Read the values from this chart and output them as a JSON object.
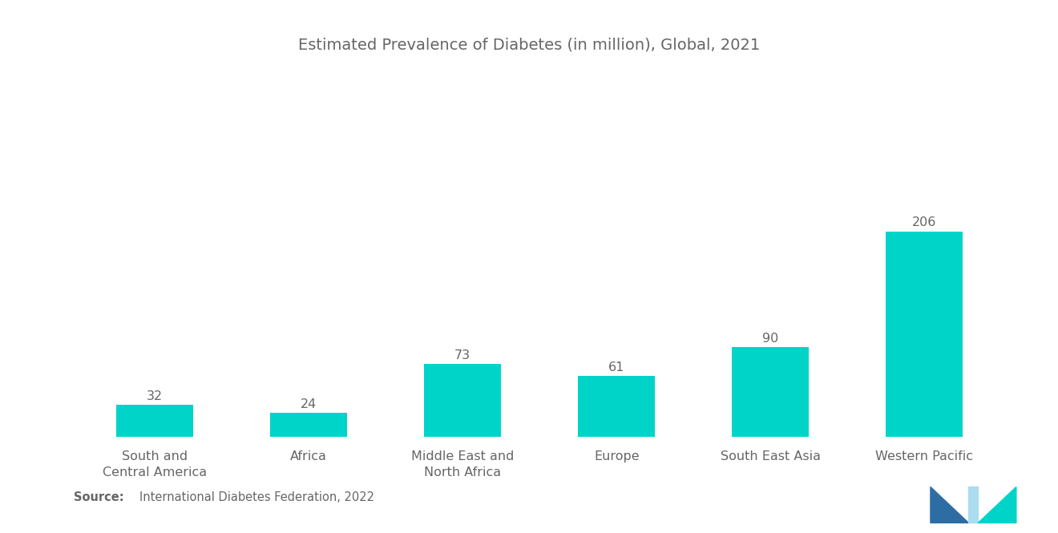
{
  "title": "Estimated Prevalence of Diabetes (in million), Global, 2021",
  "categories": [
    "South and\nCentral America",
    "Africa",
    "Middle East and\nNorth Africa",
    "Europe",
    "South East Asia",
    "Western Pacific"
  ],
  "values": [
    32,
    24,
    73,
    61,
    90,
    206
  ],
  "bar_color": "#00D4C8",
  "background_color": "#FFFFFF",
  "source_bold": "Source:",
  "source_text": "International Diabetes Federation, 2022",
  "title_fontsize": 14,
  "label_fontsize": 11.5,
  "value_fontsize": 11.5,
  "source_fontsize": 10.5,
  "bar_width": 0.5,
  "ylim": [
    0,
    310
  ],
  "text_color": "#666666"
}
